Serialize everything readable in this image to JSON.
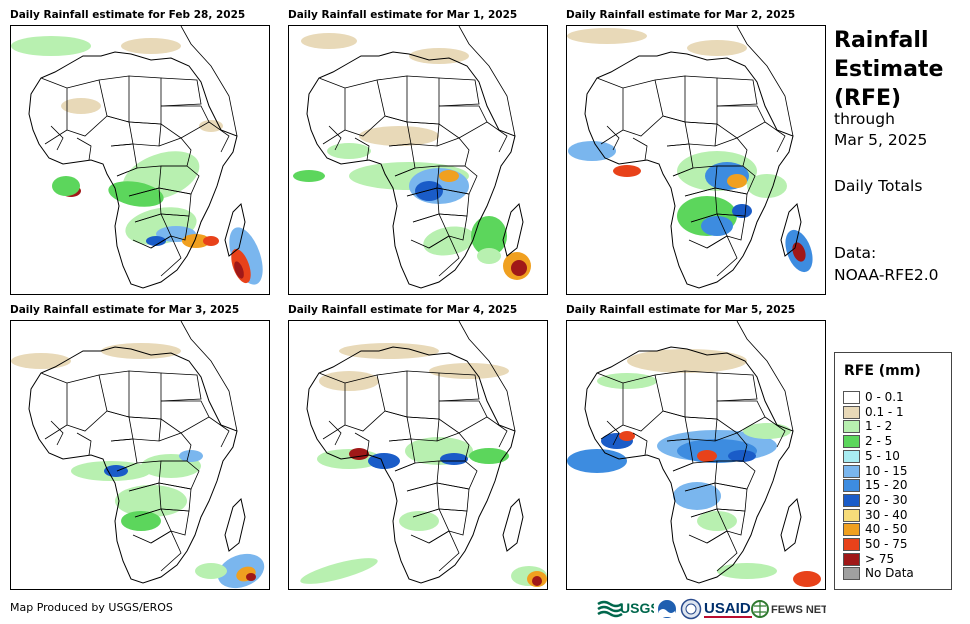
{
  "panels": [
    {
      "title": "Daily Rainfall estimate for Feb 28, 2025"
    },
    {
      "title": "Daily Rainfall estimate for Mar 1, 2025"
    },
    {
      "title": "Daily Rainfall estimate for Mar 2, 2025"
    },
    {
      "title": "Daily Rainfall estimate for Mar 3, 2025"
    },
    {
      "title": "Daily Rainfall estimate for Mar 4, 2025"
    },
    {
      "title": "Daily Rainfall estimate for Mar 5, 2025"
    }
  ],
  "side": {
    "title_line1": "Rainfall",
    "title_line2": "Estimate",
    "title_line3": "(RFE)",
    "through": "through",
    "date": "Mar 5, 2025",
    "totals": "Daily Totals",
    "data_label": "Data:",
    "data_source": "NOAA-RFE2.0"
  },
  "legend": {
    "title": "RFE (mm)",
    "items": [
      {
        "label": "0 - 0.1",
        "color": "#ffffff"
      },
      {
        "label": "0.1 - 1",
        "color": "#e8d9b8"
      },
      {
        "label": "1 - 2",
        "color": "#b8f0b0"
      },
      {
        "label": "2 - 5",
        "color": "#5cd65c"
      },
      {
        "label": "5 - 10",
        "color": "#a8ecf2"
      },
      {
        "label": "10 - 15",
        "color": "#7ab6ee"
      },
      {
        "label": "15 - 20",
        "color": "#3d8ce0"
      },
      {
        "label": "20 - 30",
        "color": "#1a5cc8"
      },
      {
        "label": "30 - 40",
        "color": "#f7dc7a"
      },
      {
        "label": "40 - 50",
        "color": "#f0a020"
      },
      {
        "label": "50 - 75",
        "color": "#e8421a"
      },
      {
        "label": "> 75",
        "color": "#a01818"
      },
      {
        "label": "No Data",
        "color": "#a0a0a0"
      }
    ]
  },
  "footer": {
    "credit": "Map Produced by USGS/EROS",
    "logos": {
      "usgs": "USGS",
      "usaid": "USAID",
      "fewsnet": "FEWS NET"
    }
  }
}
